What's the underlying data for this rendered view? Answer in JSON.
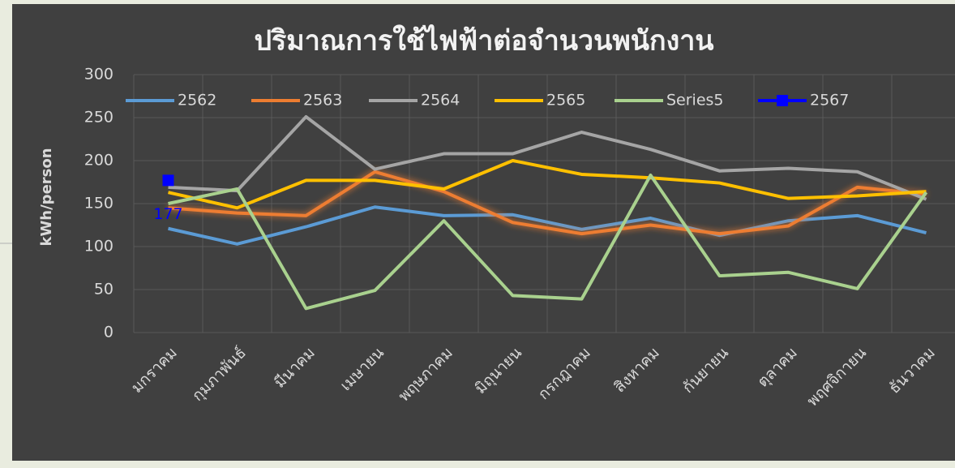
{
  "chart_data": {
    "type": "line",
    "title": "ปริมาณการใช้ไฟฟ้าต่อจำนวนพนักงาน",
    "y_label": "kWh/person",
    "categories": [
      "มกราคม",
      "กุมภาพันธ์",
      "มีนาคม",
      "เมษายน",
      "พฤษภาคม",
      "มิถุนายน",
      "กรกฎาคม",
      "สิงหาคม",
      "กันยายน",
      "ตุลาคม",
      "พฤศจิกายน",
      "ธันวาคม"
    ],
    "series": [
      {
        "name": "2562",
        "color": "#5b9bd5",
        "values": [
          121,
          103,
          123,
          146,
          136,
          137,
          120,
          133,
          113,
          130,
          136,
          116
        ]
      },
      {
        "name": "2563",
        "color": "#ed7d31",
        "values": [
          145,
          139,
          136,
          187,
          164,
          128,
          115,
          125,
          115,
          124,
          169,
          161
        ]
      },
      {
        "name": "2564",
        "color": "#a5a5a5",
        "values": [
          169,
          165,
          251,
          190,
          208,
          208,
          233,
          213,
          188,
          191,
          187,
          155
        ]
      },
      {
        "name": "2565",
        "color": "#ffc000",
        "values": [
          163,
          145,
          177,
          177,
          167,
          200,
          184,
          180,
          174,
          156,
          159,
          164
        ]
      },
      {
        "name": "Series5",
        "color": "#a9d18e",
        "values": [
          150,
          167,
          28,
          49,
          130,
          43,
          39,
          183,
          66,
          70,
          51,
          163
        ]
      },
      {
        "name": "2567",
        "color": "#0000ff",
        "values": [
          177,
          null,
          null,
          null,
          null,
          null,
          null,
          null,
          null,
          null,
          null,
          null
        ]
      }
    ],
    "ylim": [
      0,
      300
    ],
    "yticks": [
      0,
      50,
      100,
      150,
      200,
      250,
      300
    ],
    "grid": true,
    "legend": "top"
  }
}
